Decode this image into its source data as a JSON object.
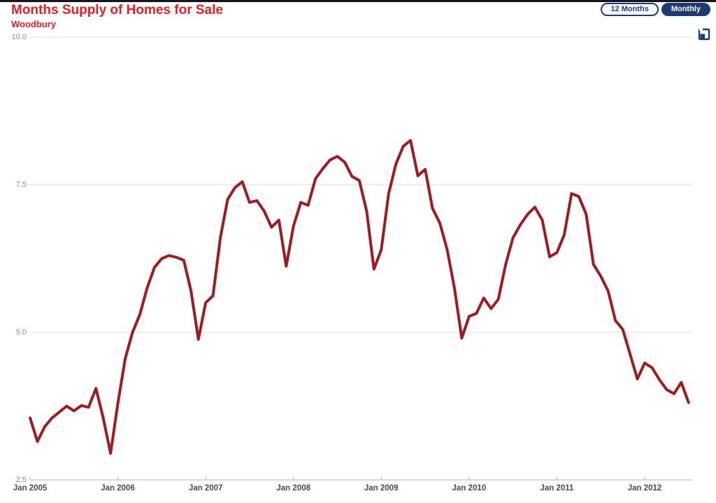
{
  "header": {
    "title": "Months Supply of Homes for Sale",
    "subtitle": "Woodbury"
  },
  "controls": {
    "range_button": "12 Months",
    "frequency_button": "Monthly",
    "export_icon": "export-icon"
  },
  "colors": {
    "title_red": "#e01e26",
    "line_red": "#9e1b22",
    "navy": "#1d3a73",
    "gridline": "#e4e4e4",
    "axis_line": "#c4c4c4",
    "y_label_gray": "#8a8a8a",
    "x_label_gray": "#4a4a4a",
    "top_bar": "#15151d"
  },
  "chart_data": {
    "type": "line",
    "title": "Months Supply of Homes for Sale",
    "region": "Woodbury",
    "frequency": "monthly",
    "x_start": "Jan 2005",
    "x_end": "Jul 2012",
    "x_tick_labels": [
      "Jan 2005",
      "Jan 2006",
      "Jan 2007",
      "Jan 2008",
      "Jan 2009",
      "Jan 2010",
      "Jan 2011",
      "Jan 2012"
    ],
    "y_tick_labels": [
      "10.0",
      "7.5",
      "5.0",
      "2.5"
    ],
    "ylim": [
      2.5,
      10.0
    ],
    "grid": "horizontal",
    "legend": "none",
    "series": [
      {
        "name": "Months Supply",
        "color": "#9e1b22",
        "values": [
          3.55,
          3.15,
          3.4,
          3.55,
          3.65,
          3.75,
          3.67,
          3.76,
          3.73,
          4.05,
          3.55,
          2.95,
          3.8,
          4.55,
          5.0,
          5.3,
          5.75,
          6.1,
          6.25,
          6.3,
          6.27,
          6.22,
          5.7,
          4.88,
          5.5,
          5.62,
          6.6,
          7.25,
          7.45,
          7.55,
          7.2,
          7.23,
          7.05,
          6.78,
          6.9,
          6.12,
          6.8,
          7.2,
          7.15,
          7.6,
          7.77,
          7.92,
          7.98,
          7.88,
          7.64,
          7.57,
          7.05,
          6.07,
          6.4,
          7.35,
          7.85,
          8.15,
          8.25,
          7.65,
          7.76,
          7.1,
          6.85,
          6.4,
          5.75,
          4.9,
          5.27,
          5.32,
          5.58,
          5.4,
          5.56,
          6.15,
          6.6,
          6.82,
          7.0,
          7.12,
          6.9,
          6.28,
          6.35,
          6.65,
          7.35,
          7.3,
          7.0,
          6.15,
          5.95,
          5.7,
          5.2,
          5.05,
          4.63,
          4.21,
          4.48,
          4.4,
          4.2,
          4.03,
          3.96,
          4.15,
          3.81
        ]
      }
    ]
  }
}
